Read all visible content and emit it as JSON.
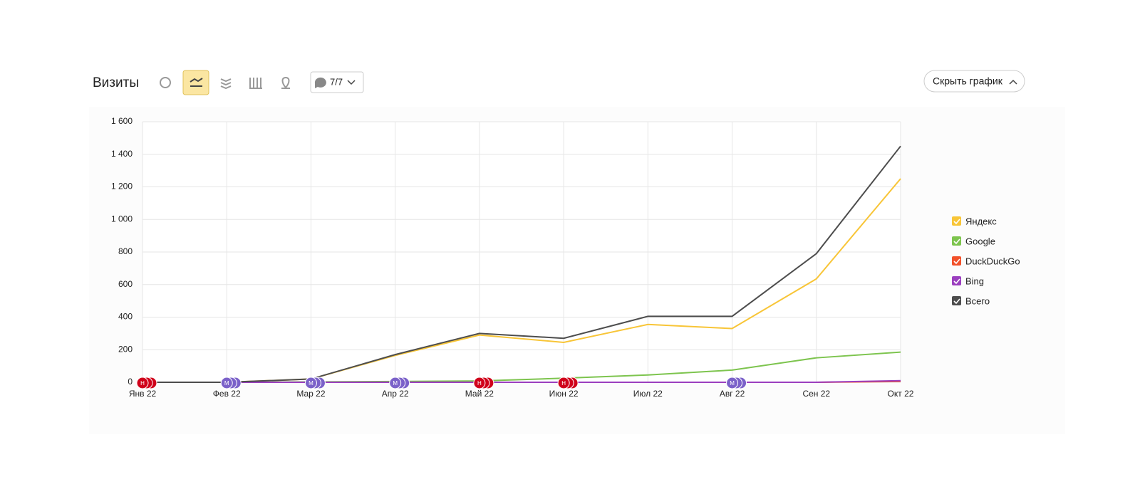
{
  "toolbar": {
    "title": "Визиты",
    "filter": "7/7",
    "hide_button": "Скрыть график"
  },
  "chart_data": {
    "type": "line",
    "categories": [
      "Янв 22",
      "Фев 22",
      "Мар 22",
      "Апр 22",
      "Май 22",
      "Июн 22",
      "Июл 22",
      "Авг 22",
      "Сен 22",
      "Окт 22"
    ],
    "series": [
      {
        "name": "Яндекс",
        "color": "#f8c537",
        "values": [
          0,
          0,
          20,
          165,
          290,
          245,
          355,
          330,
          635,
          1250
        ]
      },
      {
        "name": "Google",
        "color": "#7dc44e",
        "values": [
          0,
          0,
          2,
          5,
          8,
          25,
          45,
          75,
          150,
          185
        ]
      },
      {
        "name": "DuckDuckGo",
        "color": "#f2512a",
        "values": [
          0,
          0,
          0,
          0,
          0,
          0,
          0,
          0,
          0,
          5
        ]
      },
      {
        "name": "Bing",
        "color": "#9b3fbf",
        "values": [
          0,
          0,
          0,
          0,
          0,
          0,
          0,
          0,
          0,
          10
        ]
      },
      {
        "name": "Всего",
        "color": "#4d4d4d",
        "values": [
          0,
          0,
          20,
          170,
          300,
          270,
          405,
          405,
          790,
          1450
        ]
      }
    ],
    "ylim": [
      0,
      1600
    ],
    "yticks": [
      0,
      200,
      400,
      600,
      800,
      {
        "value": 1000,
        "label": "1 000"
      },
      {
        "value": 1200,
        "label": "1 200"
      },
      {
        "value": 1400,
        "label": "1 400"
      },
      {
        "value": 1600,
        "label": "1 600"
      }
    ],
    "grid": true,
    "legend": "right",
    "markers": [
      {
        "at": "Янв 22",
        "label": "Н",
        "color": "#d0021b"
      },
      {
        "at": "Фев 22",
        "label": "М",
        "color": "#7b61c9"
      },
      {
        "at": "Мар 22",
        "label": "М",
        "color": "#7b61c9"
      },
      {
        "at": "Апр 22",
        "label": "М",
        "color": "#7b61c9"
      },
      {
        "at": "Май 22",
        "label": "Н",
        "color": "#d0021b"
      },
      {
        "at": "Июн 22",
        "label": "Н",
        "color": "#d0021b"
      },
      {
        "at": "Авг 22",
        "label": "М",
        "color": "#7b61c9"
      }
    ]
  }
}
